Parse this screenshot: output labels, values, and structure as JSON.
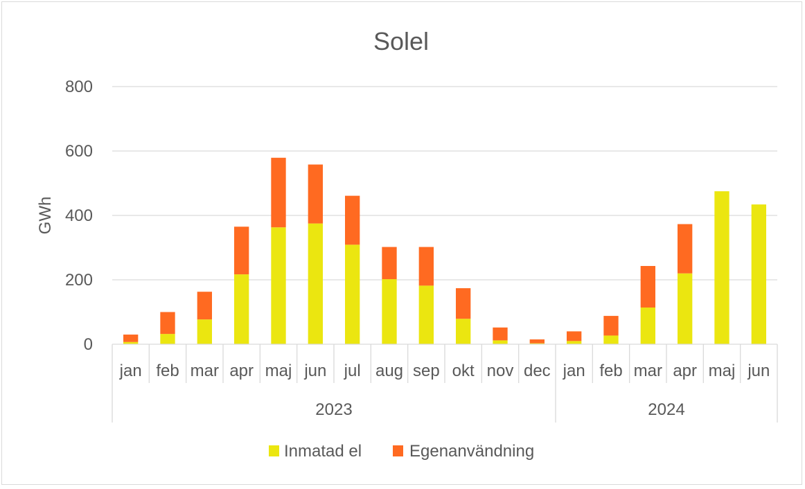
{
  "chart_data": {
    "type": "bar",
    "stacked": true,
    "title": "Solel",
    "ylabel": "GWh",
    "xlabel": "",
    "ylim": [
      0,
      800
    ],
    "yticks": [
      0,
      200,
      400,
      600,
      800
    ],
    "grid": true,
    "legend_position": "bottom",
    "categories": [
      "jan",
      "feb",
      "mar",
      "apr",
      "maj",
      "jun",
      "jul",
      "aug",
      "sep",
      "okt",
      "nov",
      "dec",
      "jan",
      "feb",
      "mar",
      "apr",
      "maj",
      "jun"
    ],
    "groups": [
      {
        "label": "2023",
        "count": 12
      },
      {
        "label": "2024",
        "count": 6
      }
    ],
    "series": [
      {
        "name": "Inmatad el",
        "color": "#ebe610",
        "values": [
          7,
          32,
          77,
          217,
          363,
          375,
          309,
          202,
          182,
          79,
          12,
          3,
          10,
          27,
          114,
          220,
          475,
          434
        ]
      },
      {
        "name": "Egenanvändning",
        "color": "#ff6a21",
        "values": [
          23,
          68,
          86,
          148,
          216,
          183,
          152,
          100,
          120,
          95,
          40,
          12,
          30,
          61,
          129,
          153,
          0,
          0
        ]
      }
    ]
  }
}
